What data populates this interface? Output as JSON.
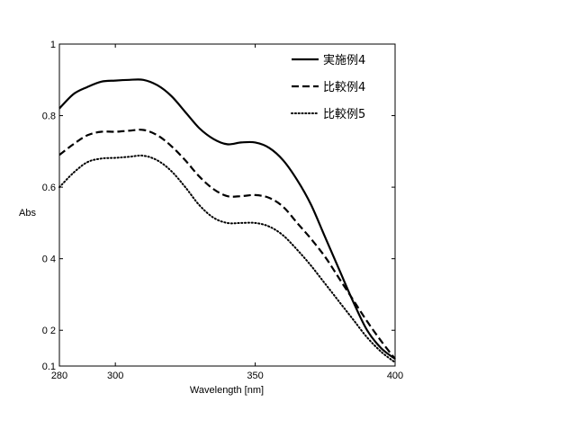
{
  "chart_data": {
    "type": "line",
    "xlabel": "Wavelength [nm]",
    "ylabel": "Abs",
    "xlim": [
      280,
      400
    ],
    "ylim": [
      0.1,
      1
    ],
    "x_ticks": [
      280,
      300,
      350,
      400
    ],
    "y_ticks": [
      0.1,
      0.2,
      0.4,
      0.6,
      0.8,
      1
    ],
    "y_tick_labels": [
      "0.1",
      "0 2",
      "0 4",
      "0.6",
      "0.8",
      "1"
    ],
    "grid": false,
    "legend_position": "top-right",
    "series": [
      {
        "name": "実施例4",
        "style": "solid",
        "color": "#000000",
        "x": [
          280,
          285,
          290,
          295,
          300,
          305,
          310,
          315,
          320,
          325,
          330,
          335,
          340,
          345,
          350,
          355,
          360,
          365,
          370,
          375,
          380,
          385,
          390,
          395,
          400
        ],
        "y": [
          0.82,
          0.86,
          0.88,
          0.895,
          0.898,
          0.9,
          0.9,
          0.885,
          0.855,
          0.81,
          0.765,
          0.735,
          0.72,
          0.725,
          0.725,
          0.71,
          0.675,
          0.62,
          0.55,
          0.46,
          0.37,
          0.28,
          0.2,
          0.15,
          0.12
        ]
      },
      {
        "name": "比較例4",
        "style": "dashed",
        "color": "#000000",
        "x": [
          280,
          285,
          290,
          295,
          300,
          305,
          310,
          315,
          320,
          325,
          330,
          335,
          340,
          345,
          350,
          355,
          360,
          365,
          370,
          375,
          380,
          385,
          390,
          395,
          400
        ],
        "y": [
          0.69,
          0.72,
          0.745,
          0.755,
          0.755,
          0.758,
          0.76,
          0.745,
          0.715,
          0.675,
          0.63,
          0.595,
          0.575,
          0.575,
          0.578,
          0.57,
          0.545,
          0.5,
          0.455,
          0.405,
          0.345,
          0.285,
          0.225,
          0.17,
          0.12
        ]
      },
      {
        "name": "比較例5",
        "style": "dotted",
        "color": "#000000",
        "x": [
          280,
          285,
          290,
          295,
          300,
          305,
          310,
          315,
          320,
          325,
          330,
          335,
          340,
          345,
          350,
          355,
          360,
          365,
          370,
          375,
          380,
          385,
          390,
          395,
          400
        ],
        "y": [
          0.6,
          0.64,
          0.67,
          0.68,
          0.682,
          0.685,
          0.688,
          0.675,
          0.645,
          0.6,
          0.55,
          0.515,
          0.5,
          0.5,
          0.5,
          0.49,
          0.465,
          0.425,
          0.38,
          0.33,
          0.28,
          0.23,
          0.18,
          0.14,
          0.11
        ]
      }
    ]
  }
}
